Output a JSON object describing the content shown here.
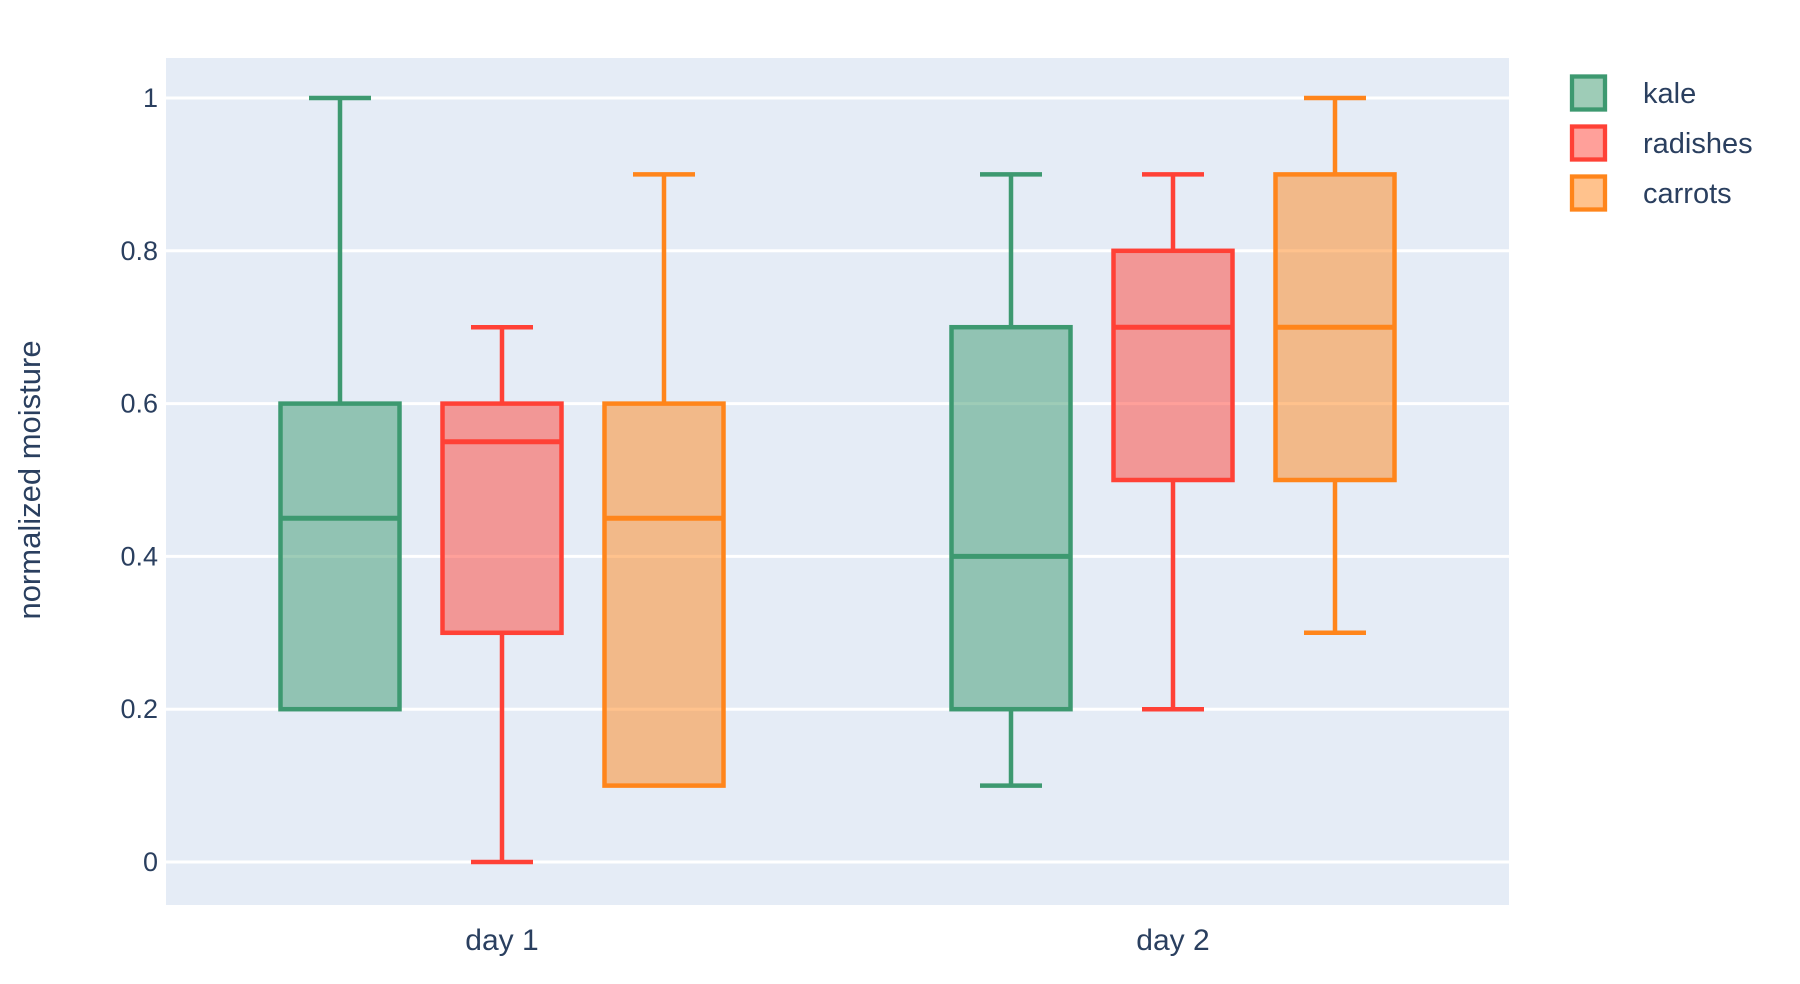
{
  "chart_data": {
    "type": "box",
    "title": "",
    "xlabel": "",
    "ylabel": "normalized moisture",
    "categories": [
      "day 1",
      "day 2"
    ],
    "yticks": [
      0,
      0.2,
      0.4,
      0.6,
      0.8,
      1
    ],
    "ylim": [
      -0.06,
      1.05
    ],
    "grid": true,
    "legend_position": "top-right",
    "colors": {
      "plot_bg": "#E5ECF6",
      "paper_bg": "#FFFFFF",
      "grid": "#FFFFFF",
      "text": "#2A3F5F"
    },
    "series": [
      {
        "name": "kale",
        "color": "#3D9970",
        "boxes": [
          {
            "category": "day 1",
            "min": 0.2,
            "q1": 0.2,
            "median": 0.45,
            "q3": 0.6,
            "max": 1.0
          },
          {
            "category": "day 2",
            "min": 0.1,
            "q1": 0.2,
            "median": 0.4,
            "q3": 0.7,
            "max": 0.9
          }
        ]
      },
      {
        "name": "radishes",
        "color": "#FF4136",
        "boxes": [
          {
            "category": "day 1",
            "min": 0.0,
            "q1": 0.3,
            "median": 0.55,
            "q3": 0.6,
            "max": 0.7
          },
          {
            "category": "day 2",
            "min": 0.2,
            "q1": 0.5,
            "median": 0.7,
            "q3": 0.8,
            "max": 0.9
          }
        ]
      },
      {
        "name": "carrots",
        "color": "#FF851B",
        "boxes": [
          {
            "category": "day 1",
            "min": 0.1,
            "q1": 0.1,
            "median": 0.45,
            "q3": 0.6,
            "max": 0.9
          },
          {
            "category": "day 2",
            "min": 0.3,
            "q1": 0.5,
            "median": 0.7,
            "q3": 0.9,
            "max": 1.0
          }
        ]
      }
    ]
  }
}
